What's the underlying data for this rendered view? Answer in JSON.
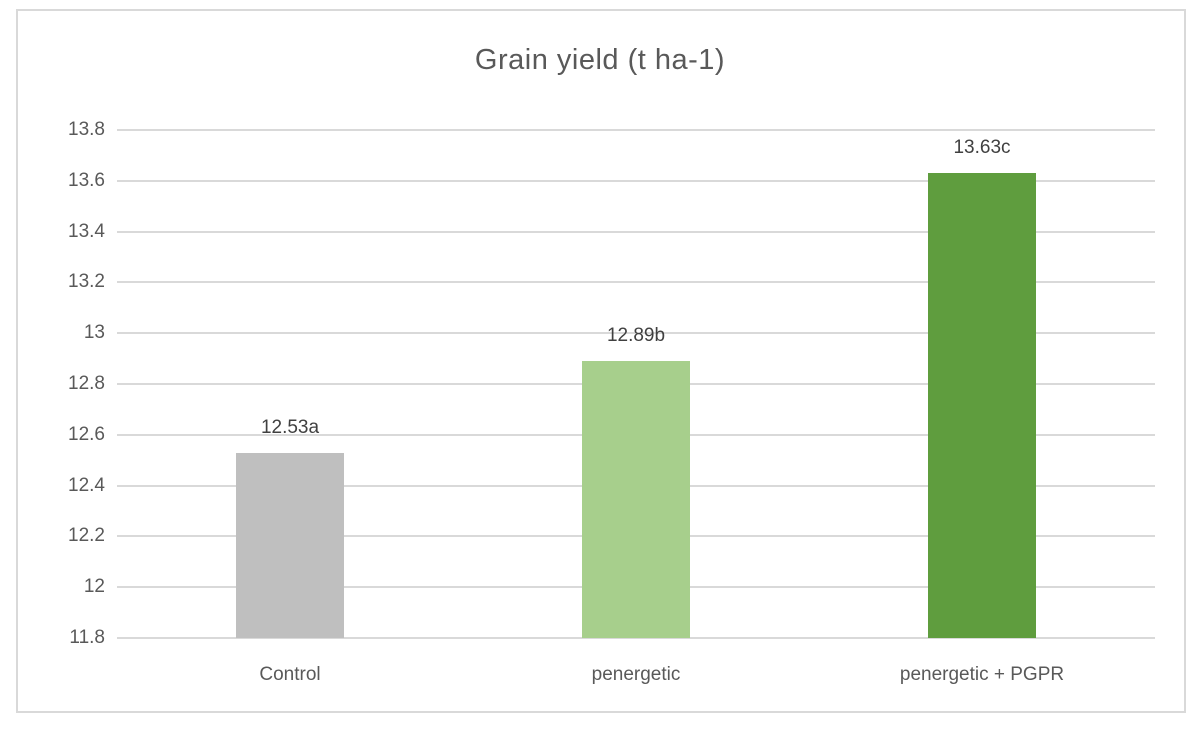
{
  "chart_data": {
    "type": "bar",
    "title": "Grain yield (t ha-1)",
    "categories": [
      "Control",
      "penergetic",
      "penergetic + PGPR"
    ],
    "values": [
      12.53,
      12.89,
      13.63
    ],
    "data_labels": [
      "12.53a",
      "12.89b",
      "13.63c"
    ],
    "bar_colors": [
      "#bfbfbf",
      "#a7cf8c",
      "#5f9d3e"
    ],
    "xlabel": "",
    "ylabel": "",
    "ylim": [
      11.8,
      13.8
    ],
    "ytick_step": 0.2,
    "yticks": [
      {
        "value": 13.8,
        "label": "13.8"
      },
      {
        "value": 13.6,
        "label": "13.6"
      },
      {
        "value": 13.4,
        "label": "13.4"
      },
      {
        "value": 13.2,
        "label": "13.2"
      },
      {
        "value": 13.0,
        "label": "13"
      },
      {
        "value": 12.8,
        "label": "12.8"
      },
      {
        "value": 12.6,
        "label": "12.6"
      },
      {
        "value": 12.4,
        "label": "12.4"
      },
      {
        "value": 12.2,
        "label": "12.2"
      },
      {
        "value": 12.0,
        "label": "12"
      },
      {
        "value": 11.8,
        "label": "11.8"
      }
    ],
    "grid": "horizontal",
    "legend": "none"
  },
  "colors": {
    "title_text": "#595959",
    "axis_text": "#595959",
    "data_label_text": "#404040",
    "gridline": "#d9d9d9",
    "frame_border": "#d9d9d9",
    "background": "#ffffff"
  }
}
